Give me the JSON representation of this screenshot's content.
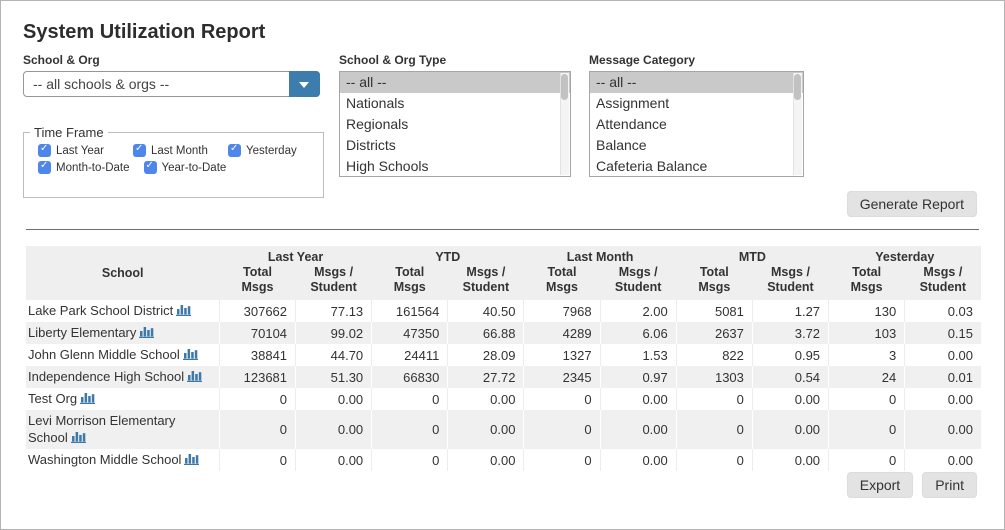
{
  "page": {
    "title": "System Utilization Report"
  },
  "filters": {
    "school_org": {
      "label": "School & Org",
      "value": "-- all schools & orgs --"
    },
    "school_org_type": {
      "label": "School & Org Type",
      "selected": "-- all --",
      "options": [
        "-- all --",
        "Nationals",
        "Regionals",
        "Districts",
        "High Schools"
      ]
    },
    "message_category": {
      "label": "Message Category",
      "selected": "-- all --",
      "options": [
        "-- all --",
        "Assignment",
        "Attendance",
        "Balance",
        "Cafeteria Balance"
      ]
    },
    "time_frame": {
      "legend": "Time Frame",
      "options": [
        {
          "label": "Last Year",
          "checked": true
        },
        {
          "label": "Last Month",
          "checked": true
        },
        {
          "label": "Yesterday",
          "checked": true
        },
        {
          "label": "Month-to-Date",
          "checked": true
        },
        {
          "label": "Year-to-Date",
          "checked": true
        }
      ]
    }
  },
  "buttons": {
    "generate": "Generate Report",
    "export": "Export",
    "print": "Print"
  },
  "table": {
    "school_header": "School",
    "group_headers": [
      "Last Year",
      "YTD",
      "Last Month",
      "MTD",
      "Yesterday"
    ],
    "sub_headers": [
      "Total\nMsgs",
      "Msgs /\nStudent",
      "Total\nMsgs",
      "Msgs /\nStudent",
      "Total\nMsgs",
      "Msgs /\nStudent",
      "Total\nMsgs",
      "Msgs /\nStudent",
      "Total\nMsgs",
      "Msgs /\nStudent"
    ],
    "rows": [
      {
        "school": "Lake Park School District",
        "values": [
          "307662",
          "77.13",
          "161564",
          "40.50",
          "7968",
          "2.00",
          "5081",
          "1.27",
          "130",
          "0.03"
        ]
      },
      {
        "school": "Liberty Elementary",
        "values": [
          "70104",
          "99.02",
          "47350",
          "66.88",
          "4289",
          "6.06",
          "2637",
          "3.72",
          "103",
          "0.15"
        ]
      },
      {
        "school": "John Glenn Middle School",
        "values": [
          "38841",
          "44.70",
          "24411",
          "28.09",
          "1327",
          "1.53",
          "822",
          "0.95",
          "3",
          "0.00"
        ]
      },
      {
        "school": "Independence High School",
        "values": [
          "123681",
          "51.30",
          "66830",
          "27.72",
          "2345",
          "0.97",
          "1303",
          "0.54",
          "24",
          "0.01"
        ]
      },
      {
        "school": "Test Org",
        "values": [
          "0",
          "0.00",
          "0",
          "0.00",
          "0",
          "0.00",
          "0",
          "0.00",
          "0",
          "0.00"
        ]
      },
      {
        "school": "Levi Morrison Elementary School",
        "values": [
          "0",
          "0.00",
          "0",
          "0.00",
          "0",
          "0.00",
          "0",
          "0.00",
          "0",
          "0.00"
        ]
      },
      {
        "school": "Washington Middle School",
        "values": [
          "0",
          "0.00",
          "0",
          "0.00",
          "0",
          "0.00",
          "0",
          "0.00",
          "0",
          "0.00"
        ]
      }
    ]
  },
  "colors": {
    "select_button_blue": "#3d7dad",
    "checkbox_blue": "#4f86ec",
    "chart_icon_blue": "#3c78aa",
    "table_header_bg": "#efefef",
    "row_alt_bg": "#f0f0f0",
    "button_bg": "#e3e3e3"
  },
  "icons": {
    "dropdown_arrow": "chevron-down-icon",
    "checkmark": "checkmark-icon",
    "bar_chart": "bar-chart-icon"
  }
}
